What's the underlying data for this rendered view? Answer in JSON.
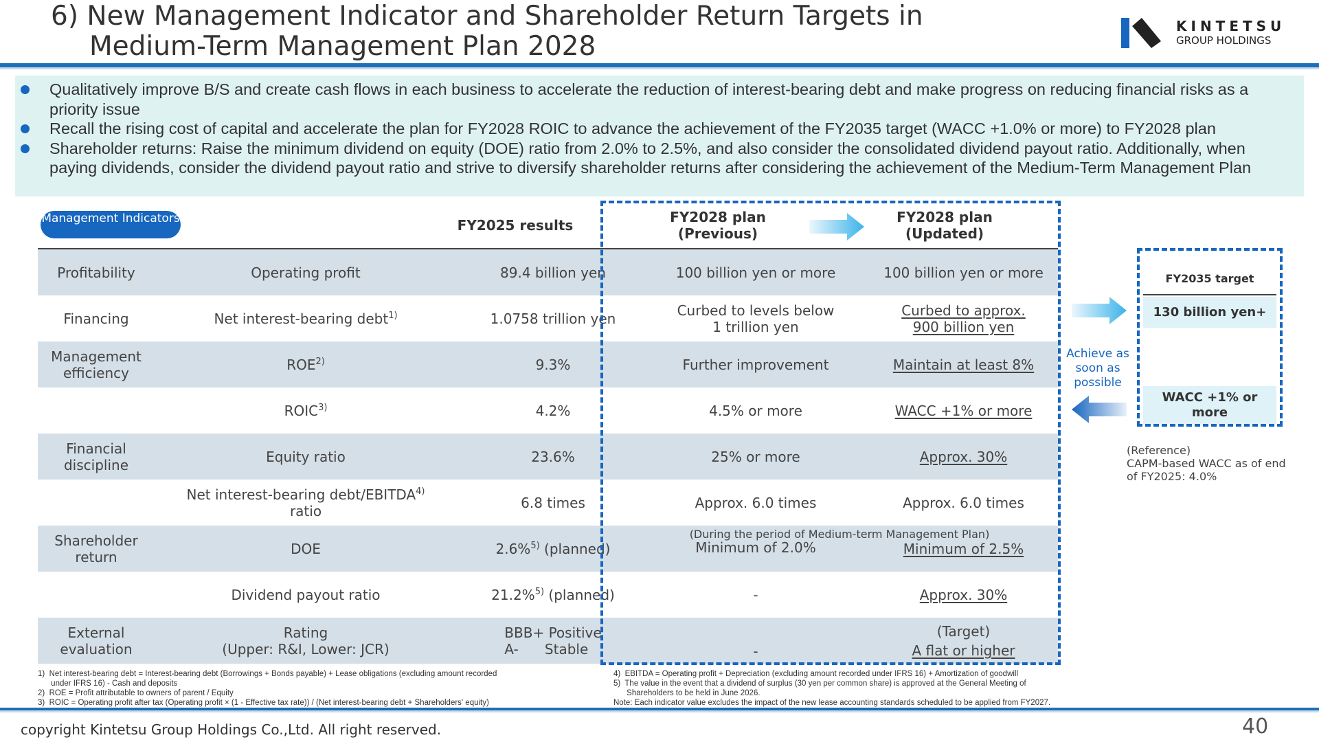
{
  "title": {
    "line1": "6) New Management Indicator and Shareholder Return Targets in",
    "line2": "Medium-Term Management Plan 2028"
  },
  "logo": {
    "name": "KINTETSU",
    "sub": "GROUP HOLDINGS",
    "icon": "kintetsu-logo-icon"
  },
  "bullets": [
    "Qualitatively improve B/S and create cash flows in each business to accelerate the reduction of interest-bearing debt and make progress on reducing financial risks as a priority issue",
    "Recall the rising cost of capital and accelerate the plan for FY2028 ROIC to advance the achievement of the FY2035 target (WACC +1.0% or more) to FY2028 plan",
    "Shareholder returns: Raise the minimum dividend on equity (DOE) ratio from 2.0% to 2.5%, and also consider the consolidated dividend payout ratio. Additionally, when paying dividends, consider the dividend payout ratio and strive to diversify shareholder returns after considering the achievement of the Medium-Term Management Plan"
  ],
  "table": {
    "pill": "Management Indicators",
    "headers": {
      "fy2025": "FY2025 results",
      "fy2028_prev_1": "FY2028 plan",
      "fy2028_prev_2": "(Previous)",
      "fy2028_upd_1": "FY2028 plan",
      "fy2028_upd_2": "(Updated)"
    },
    "rows": [
      {
        "cat": "Profitability",
        "ind": "Operating profit",
        "fy2025": "89.4 billion yen",
        "prev": "100 billion yen or more",
        "upd": "100 billion yen or more"
      },
      {
        "cat": "Financing",
        "ind": "Net interest-bearing debt",
        "ind_sup": "1)",
        "fy2025": "1.0758 trillion yen",
        "prev_1": "Curbed to levels below",
        "prev_2": "1 trillion yen",
        "upd_1": "Curbed to approx.",
        "upd_2": "900 billion yen"
      },
      {
        "cat_1": "Management",
        "cat_2": "efficiency",
        "ind": "ROE",
        "ind_sup": "2)",
        "fy2025": "9.3%",
        "prev": "Further improvement",
        "upd": "Maintain at least 8%"
      },
      {
        "cat": "",
        "ind": "ROIC",
        "ind_sup": "3)",
        "fy2025": "4.2%",
        "prev": "4.5% or more",
        "upd": "WACC +1% or more"
      },
      {
        "cat_1": "Financial",
        "cat_2": "discipline",
        "ind": "Equity ratio",
        "fy2025": "23.6%",
        "prev": "25% or more",
        "upd": "Approx. 30%"
      },
      {
        "cat": "",
        "ind_1": "Net interest-bearing debt/EBITDA",
        "ind_sup": "4)",
        "ind_2": "ratio",
        "fy2025": "6.8 times",
        "prev": "Approx. 6.0 times",
        "upd": "Approx. 6.0 times"
      },
      {
        "cat_1": "Shareholder",
        "cat_2": "return",
        "ind": "DOE",
        "fy2025_a": "2.6%",
        "fy2025_sup": "5)",
        "fy2025_b": " (planned)",
        "note": "(During the period of Medium-term Management Plan)",
        "prev": "Minimum of 2.0%",
        "upd": "Minimum of 2.5%"
      },
      {
        "cat": "",
        "ind": "Dividend payout ratio",
        "fy2025_a": "21.2%",
        "fy2025_sup": "5)",
        "fy2025_b": " (planned)",
        "prev": "-",
        "upd": "Approx. 30%"
      },
      {
        "cat_1": "External",
        "cat_2": "evaluation",
        "ind_1": "Rating",
        "ind_2": "(Upper: R&I, Lower: JCR)",
        "fy2025_1": "BBB+ Positive",
        "fy2025_2": "A-      Stable",
        "prev": "-",
        "upd_1": "(Target)",
        "upd_2": "A flat or higher"
      }
    ]
  },
  "side": {
    "achieve": "Achieve as soon as possible",
    "target_title": "FY2035 target",
    "target_1": "130 billion yen+",
    "target_2": "WACC +1% or more",
    "ref_1": "(Reference)",
    "ref_2": "CAPM-based WACC as of end",
    "ref_3": "of FY2025: 4.0%"
  },
  "footnotes_left": [
    "1)  Net interest-bearing debt = Interest-bearing debt (Borrowings + Bonds payable) + Lease obligations (excluding amount recorded",
    "      under IFRS 16) - Cash and deposits",
    "2)  ROE = Profit attributable to owners of parent / Equity",
    "3)  ROIC = Operating profit after tax (Operating profit × (1 - Effective tax rate)) / (Net interest-bearing debt + Shareholders' equity)"
  ],
  "footnotes_right": [
    "4)  EBITDA = Operating profit + Depreciation (excluding amount recorded under IFRS 16) + Amortization of goodwill",
    "5)  The value in the event that a dividend of surplus (30 yen per common share) is approved at the General Meeting of",
    "      Shareholders to be held in June 2026.",
    "Note: Each indicator value excludes the impact of the new lease accounting standards scheduled to be applied from FY2027."
  ],
  "footer": {
    "copyright": "copyright Kintetsu Group Holdings Co.,Ltd. All right reserved.",
    "page": "40"
  },
  "colors": {
    "brand_blue": "#1766c0",
    "bullet_bg": "#def2f1",
    "row_shade": "#d5dfe7",
    "arrow_cyan": "#3bb3ea"
  }
}
